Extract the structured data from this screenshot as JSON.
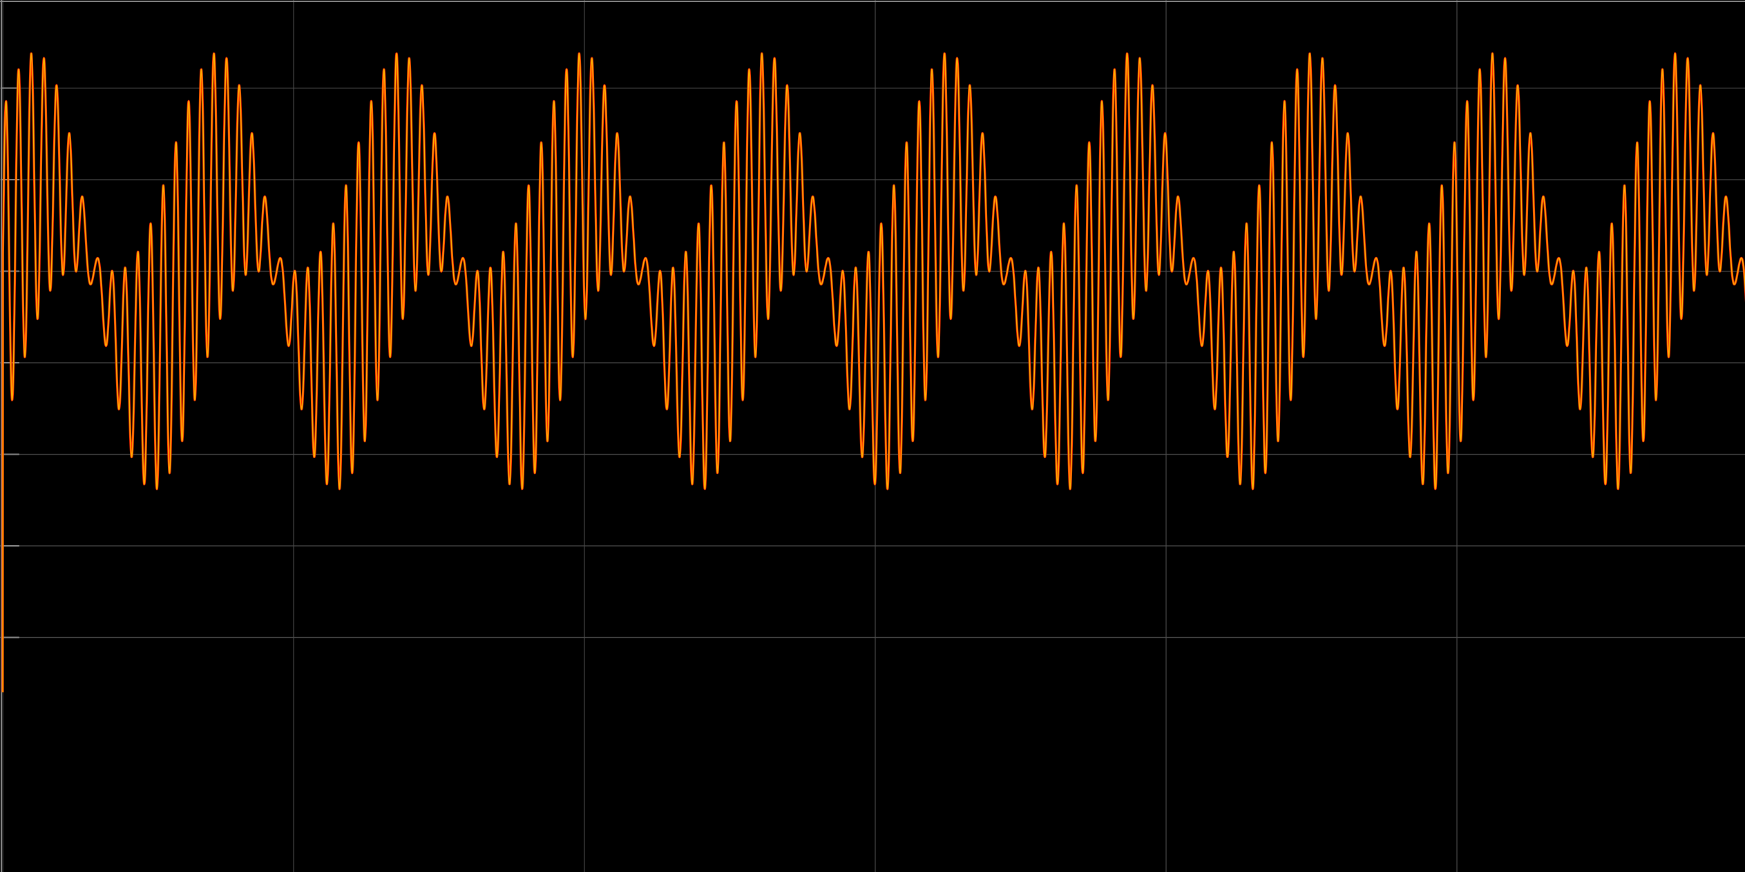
{
  "window": {
    "background": "#000000"
  },
  "chart_data": {
    "type": "line",
    "title": "",
    "xlabel": "",
    "ylabel": "",
    "grid": true,
    "grid_color": "#4a4a4a",
    "axis_color": "#8a8a8a",
    "background": "#000000",
    "xlim": [
      0,
      6
    ],
    "ylim": [
      -5,
      4.5
    ],
    "x_ticks": [
      0,
      1,
      2,
      3,
      4,
      5,
      6
    ],
    "y_ticks": [
      -4,
      -3,
      -2,
      -1,
      0,
      1,
      2,
      3,
      4
    ],
    "tick_labels_visible": false,
    "signal": {
      "period": 0.628,
      "start_value": -4.6,
      "components": [
        {
          "amplitude": 1.0,
          "cycles_per_period": 1,
          "phase": 0.0
        },
        {
          "amplitude": 1.0,
          "cycles_per_period": 14,
          "phase": 0.0
        },
        {
          "amplitude": 0.75,
          "cycles_per_period": 15,
          "phase": 0.0
        }
      ],
      "samples_per_unit": 1400
    },
    "series": [
      {
        "color": "#ff2a00",
        "width": 3.2
      },
      {
        "color": "#ffb000",
        "width": 1.6
      }
    ]
  }
}
